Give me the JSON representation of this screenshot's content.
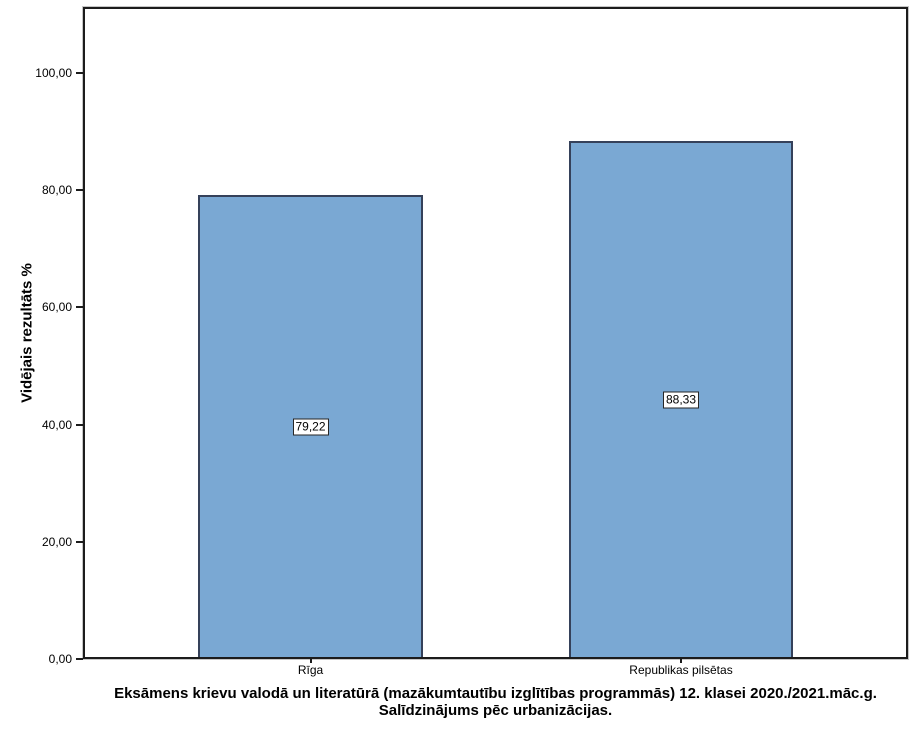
{
  "chart_data": {
    "type": "bar",
    "title_lines": [
      "Eksāmens krievu valodā un literatūrā (mazākumtautību izglītības programmās) 12. klasei 2020./2021.māc.g.",
      "Salīdzinājums pēc urbanizācijas."
    ],
    "ylabel": "Vidējais rezultāts %",
    "xlabel": "",
    "categories": [
      "Rīga",
      "Republikas pilsētas"
    ],
    "values": [
      79.22,
      88.33
    ],
    "value_labels": [
      "79,22",
      "88,33"
    ],
    "yticks": [
      0,
      20,
      40,
      60,
      80,
      100
    ],
    "ytick_labels": [
      "0,00",
      "20,00",
      "40,00",
      "60,00",
      "80,00",
      "100,00"
    ],
    "ylim": [
      0,
      111
    ],
    "grid": false,
    "legend": false,
    "colors": {
      "bar_fill": "#7AA8D3",
      "bar_border": "#35415A",
      "axis": "#1C1C1C",
      "frame_outer": "#C6C6C6",
      "label_box_bg": "#FFFFFF",
      "label_box_border": "#262626",
      "text": "#000000"
    }
  }
}
